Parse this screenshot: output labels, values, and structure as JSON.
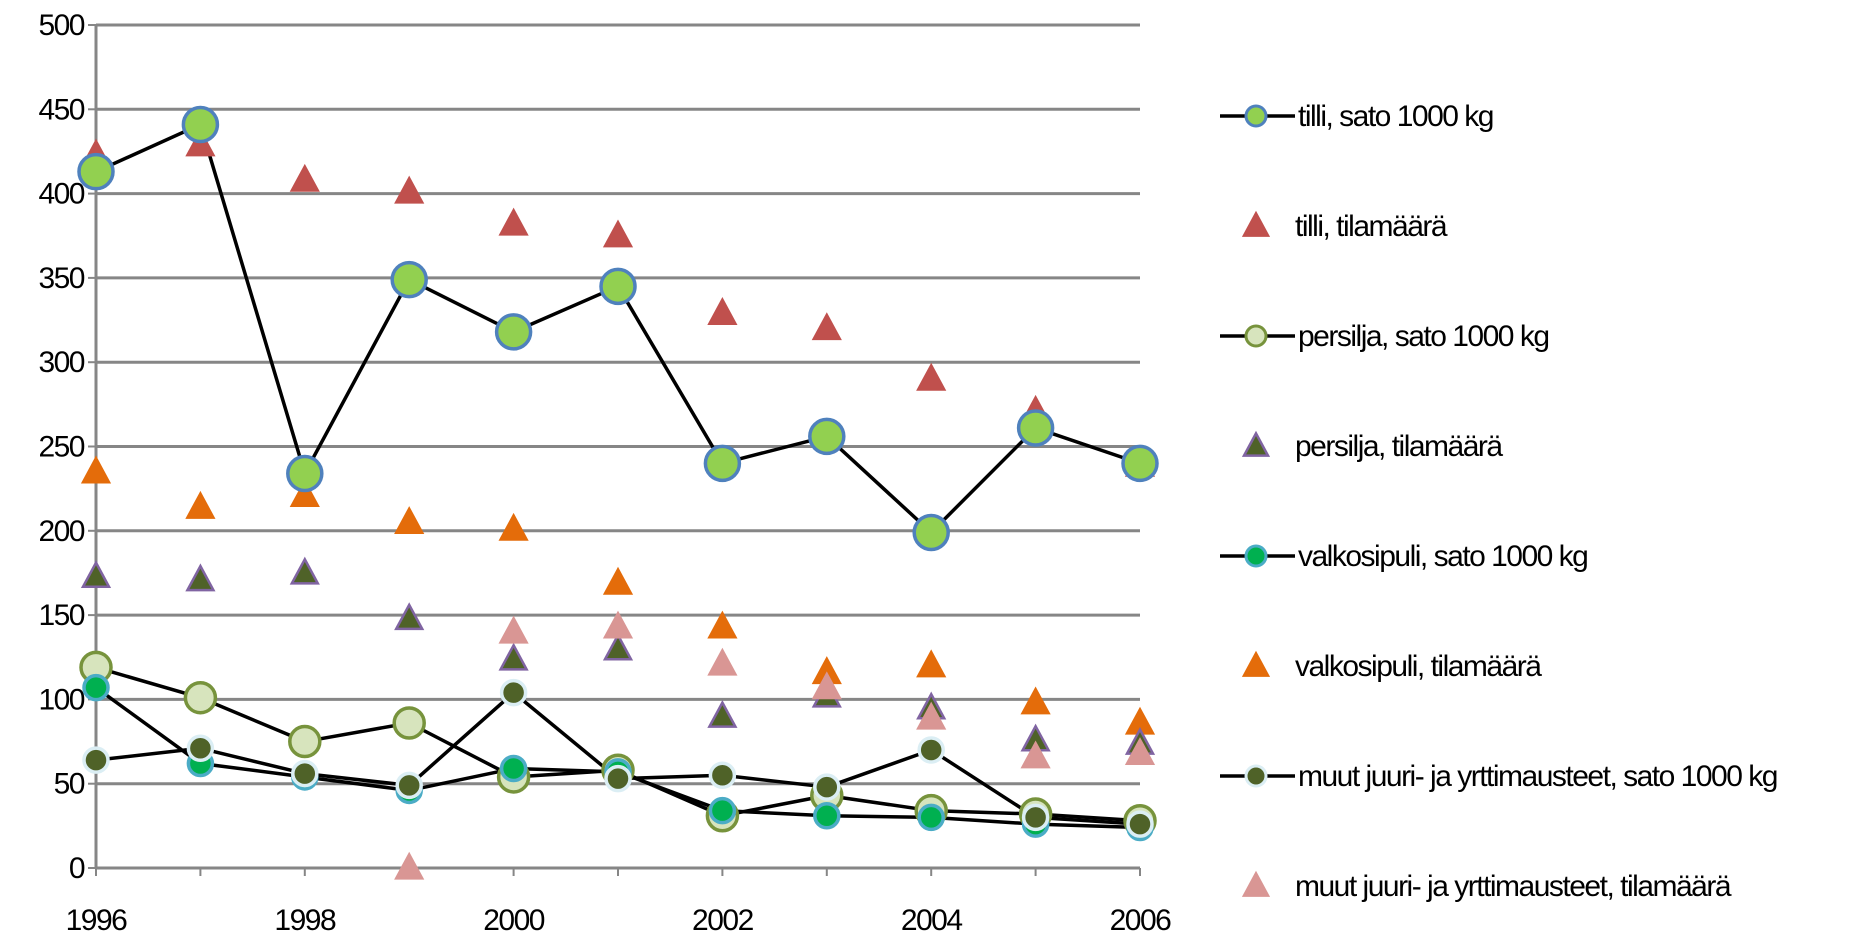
{
  "chart_data": {
    "type": "line",
    "title": "",
    "xlabel": "",
    "ylabel": "",
    "x": [
      1996,
      1997,
      1998,
      1999,
      2000,
      2001,
      2002,
      2003,
      2004,
      2005,
      2006
    ],
    "x_tick_labels": [
      "1996",
      "1998",
      "2000",
      "2002",
      "2004",
      "2006"
    ],
    "y_tick_labels": [
      "0",
      "50",
      "100",
      "150",
      "200",
      "250",
      "300",
      "350",
      "400",
      "450",
      "500"
    ],
    "ylim": [
      0,
      500
    ],
    "grid": "horizontal",
    "legend_position": "right",
    "series": [
      {
        "name": "tilli, sato 1000 kg",
        "kind": "line",
        "marker": "circle",
        "color": "#92D050",
        "edge": "#4F81BD",
        "values": [
          413,
          441,
          234,
          349,
          318,
          345,
          240,
          256,
          199,
          261,
          240
        ]
      },
      {
        "name": "tilli, tilamäärä",
        "kind": "marker",
        "marker": "triangle",
        "color": "#C0504D",
        "edge": "#C0504D",
        "values": [
          423,
          429,
          408,
          401,
          382,
          375,
          329,
          320,
          290,
          271,
          239
        ]
      },
      {
        "name": "persilja, sato 1000 kg",
        "kind": "line",
        "marker": "circle",
        "color": "#D7E4BD",
        "edge": "#77933C",
        "values": [
          119,
          101,
          75,
          86,
          54,
          58,
          31,
          43,
          34,
          32,
          28
        ]
      },
      {
        "name": "persilja, tilamäärä",
        "kind": "marker",
        "marker": "triangle",
        "color": "#4F6228",
        "edge": "#8064A2",
        "values": [
          173,
          171,
          175,
          148,
          124,
          130,
          90,
          102,
          95,
          76,
          74
        ]
      },
      {
        "name": "valkosipuli, sato 1000 kg",
        "kind": "line",
        "marker": "circle",
        "color": "#00B050",
        "edge": "#4BACC6",
        "values": [
          107,
          62,
          54,
          46,
          59,
          57,
          34,
          31,
          30,
          26,
          24
        ]
      },
      {
        "name": "valkosipuli, tilamäärä",
        "kind": "marker",
        "marker": "triangle",
        "color": "#E46C0A",
        "edge": "#E46C0A",
        "values": [
          235,
          214,
          221,
          205,
          201,
          169,
          143,
          116,
          120,
          98,
          86
        ]
      },
      {
        "name": "muut juuri- ja yrttimausteet, sato 1000 kg",
        "kind": "line",
        "marker": "circle",
        "color": "#4F6228",
        "edge": "#DBEEF4",
        "values": [
          64,
          71,
          56,
          49,
          104,
          53,
          55,
          48,
          70,
          30,
          26
        ]
      },
      {
        "name": "muut juuri- ja yrttimausteet, tilamäärä",
        "kind": "marker",
        "marker": "triangle",
        "color": "#D99694",
        "edge": "#D99694",
        "values": [
          null,
          null,
          null,
          0,
          140,
          143,
          121,
          107,
          89,
          66,
          68
        ]
      }
    ]
  }
}
